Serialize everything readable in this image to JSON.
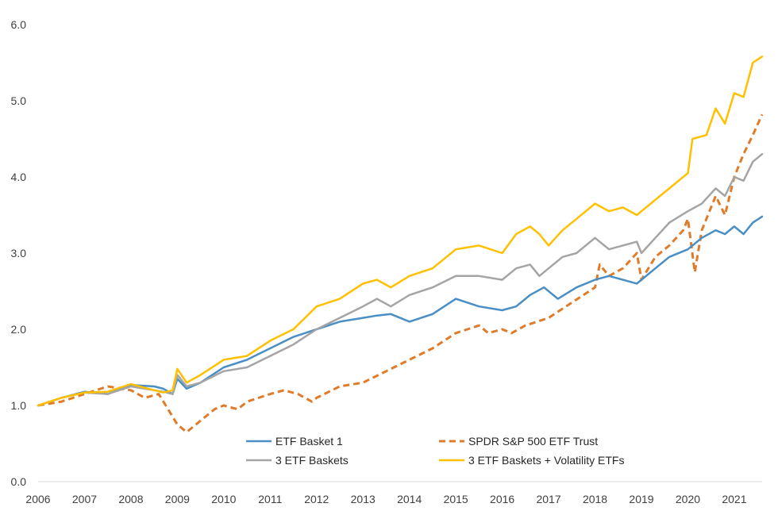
{
  "chart_data": {
    "type": "line",
    "title": "",
    "xlabel": "",
    "ylabel": "",
    "xlim": [
      2006,
      2021.6
    ],
    "ylim": [
      0,
      6
    ],
    "y_ticks": [
      0,
      1,
      2,
      3,
      4,
      5,
      6
    ],
    "y_tick_labels": [
      "0.0",
      "1.0",
      "2.0",
      "3.0",
      "4.0",
      "5.0",
      "6.0"
    ],
    "x_tick_labels": [
      "2006",
      "2007",
      "2008",
      "2009",
      "2010",
      "2011",
      "2012",
      "2013",
      "2014",
      "2015",
      "2016",
      "2017",
      "2018",
      "2019",
      "2020",
      "2021"
    ],
    "grid": false,
    "legend_position": "bottom-inside",
    "series": [
      {
        "name": "ETF Basket 1",
        "color": "#4a8ec6",
        "style": "solid",
        "x": [
          2006,
          2006.5,
          2007,
          2007.5,
          2008,
          2008.5,
          2008.7,
          2008.9,
          2009,
          2009.2,
          2009.5,
          2010,
          2010.5,
          2011,
          2011.5,
          2012,
          2012.5,
          2013,
          2013.3,
          2013.6,
          2014,
          2014.5,
          2015,
          2015.5,
          2016,
          2016.3,
          2016.6,
          2016.9,
          2017.2,
          2017.6,
          2018,
          2018.3,
          2018.6,
          2018.9,
          2019,
          2019.3,
          2019.6,
          2020,
          2020.3,
          2020.6,
          2020.8,
          2021,
          2021.2,
          2021.4,
          2021.6
        ],
        "values": [
          1.0,
          1.1,
          1.18,
          1.15,
          1.27,
          1.25,
          1.22,
          1.15,
          1.35,
          1.22,
          1.3,
          1.5,
          1.6,
          1.75,
          1.9,
          2.0,
          2.1,
          2.15,
          2.18,
          2.2,
          2.1,
          2.2,
          2.4,
          2.3,
          2.25,
          2.3,
          2.45,
          2.55,
          2.4,
          2.55,
          2.65,
          2.7,
          2.65,
          2.6,
          2.65,
          2.8,
          2.95,
          3.05,
          3.2,
          3.3,
          3.25,
          3.35,
          3.25,
          3.4,
          3.48
        ]
      },
      {
        "name": "SPDR S&P 500 ETF Trust",
        "color": "#e07b2a",
        "style": "dashed",
        "x": [
          2006,
          2006.5,
          2007,
          2007.5,
          2008,
          2008.3,
          2008.6,
          2008.8,
          2009.0,
          2009.2,
          2009.5,
          2009.8,
          2010,
          2010.3,
          2010.5,
          2011,
          2011.3,
          2011.6,
          2011.9,
          2012,
          2012.5,
          2013,
          2013.5,
          2014,
          2014.5,
          2015,
          2015.5,
          2015.7,
          2016,
          2016.2,
          2016.5,
          2017,
          2017.5,
          2018,
          2018.1,
          2018.3,
          2018.6,
          2018.9,
          2019.0,
          2019.3,
          2019.6,
          2019.9,
          2020.0,
          2020.15,
          2020.3,
          2020.6,
          2020.8,
          2021.0,
          2021.2,
          2021.4,
          2021.6
        ],
        "values": [
          1.0,
          1.05,
          1.15,
          1.25,
          1.2,
          1.1,
          1.15,
          0.95,
          0.75,
          0.65,
          0.8,
          0.95,
          1.0,
          0.95,
          1.05,
          1.15,
          1.2,
          1.15,
          1.05,
          1.1,
          1.25,
          1.3,
          1.45,
          1.6,
          1.75,
          1.95,
          2.05,
          1.95,
          2.0,
          1.95,
          2.05,
          2.15,
          2.35,
          2.55,
          2.85,
          2.7,
          2.8,
          3.0,
          2.65,
          2.95,
          3.1,
          3.3,
          3.45,
          2.75,
          3.3,
          3.75,
          3.5,
          4.0,
          4.3,
          4.55,
          4.82
        ]
      },
      {
        "name": "3 ETF Baskets",
        "color": "#a5a5a5",
        "style": "solid",
        "x": [
          2006,
          2006.5,
          2007,
          2007.5,
          2008,
          2008.5,
          2008.7,
          2008.9,
          2009,
          2009.2,
          2009.5,
          2010,
          2010.5,
          2011,
          2011.5,
          2012,
          2012.5,
          2013,
          2013.3,
          2013.6,
          2014,
          2014.5,
          2015,
          2015.5,
          2016,
          2016.3,
          2016.6,
          2016.8,
          2017,
          2017.3,
          2017.6,
          2018,
          2018.3,
          2018.6,
          2018.9,
          2019,
          2019.3,
          2019.6,
          2020,
          2020.3,
          2020.6,
          2020.8,
          2021,
          2021.2,
          2021.4,
          2021.6
        ],
        "values": [
          1.0,
          1.1,
          1.17,
          1.15,
          1.25,
          1.2,
          1.18,
          1.15,
          1.4,
          1.25,
          1.3,
          1.45,
          1.5,
          1.65,
          1.8,
          2.0,
          2.15,
          2.3,
          2.4,
          2.3,
          2.45,
          2.55,
          2.7,
          2.7,
          2.65,
          2.8,
          2.85,
          2.7,
          2.8,
          2.95,
          3.0,
          3.2,
          3.05,
          3.1,
          3.15,
          3.0,
          3.2,
          3.4,
          3.55,
          3.65,
          3.85,
          3.75,
          4.0,
          3.95,
          4.2,
          4.3
        ]
      },
      {
        "name": "3 ETF Baskets + Volatility ETFs",
        "color": "#ffc000",
        "style": "solid",
        "x": [
          2006,
          2006.5,
          2007,
          2007.5,
          2008,
          2008.5,
          2008.7,
          2008.9,
          2009,
          2009.2,
          2009.5,
          2010,
          2010.5,
          2011,
          2011.5,
          2012,
          2012.5,
          2013,
          2013.3,
          2013.6,
          2014,
          2014.5,
          2015,
          2015.5,
          2016,
          2016.3,
          2016.6,
          2016.8,
          2017,
          2017.3,
          2017.6,
          2018,
          2018.3,
          2018.6,
          2018.9,
          2019,
          2019.3,
          2019.6,
          2020,
          2020.1,
          2020.4,
          2020.6,
          2020.8,
          2021,
          2021.2,
          2021.4,
          2021.6
        ],
        "values": [
          1.0,
          1.1,
          1.17,
          1.18,
          1.28,
          1.2,
          1.17,
          1.2,
          1.48,
          1.3,
          1.4,
          1.6,
          1.65,
          1.85,
          2.0,
          2.3,
          2.4,
          2.6,
          2.65,
          2.55,
          2.7,
          2.8,
          3.05,
          3.1,
          3.0,
          3.25,
          3.35,
          3.25,
          3.1,
          3.3,
          3.45,
          3.65,
          3.55,
          3.6,
          3.5,
          3.55,
          3.7,
          3.85,
          4.05,
          4.5,
          4.55,
          4.9,
          4.7,
          5.1,
          5.05,
          5.5,
          5.58
        ]
      }
    ]
  }
}
